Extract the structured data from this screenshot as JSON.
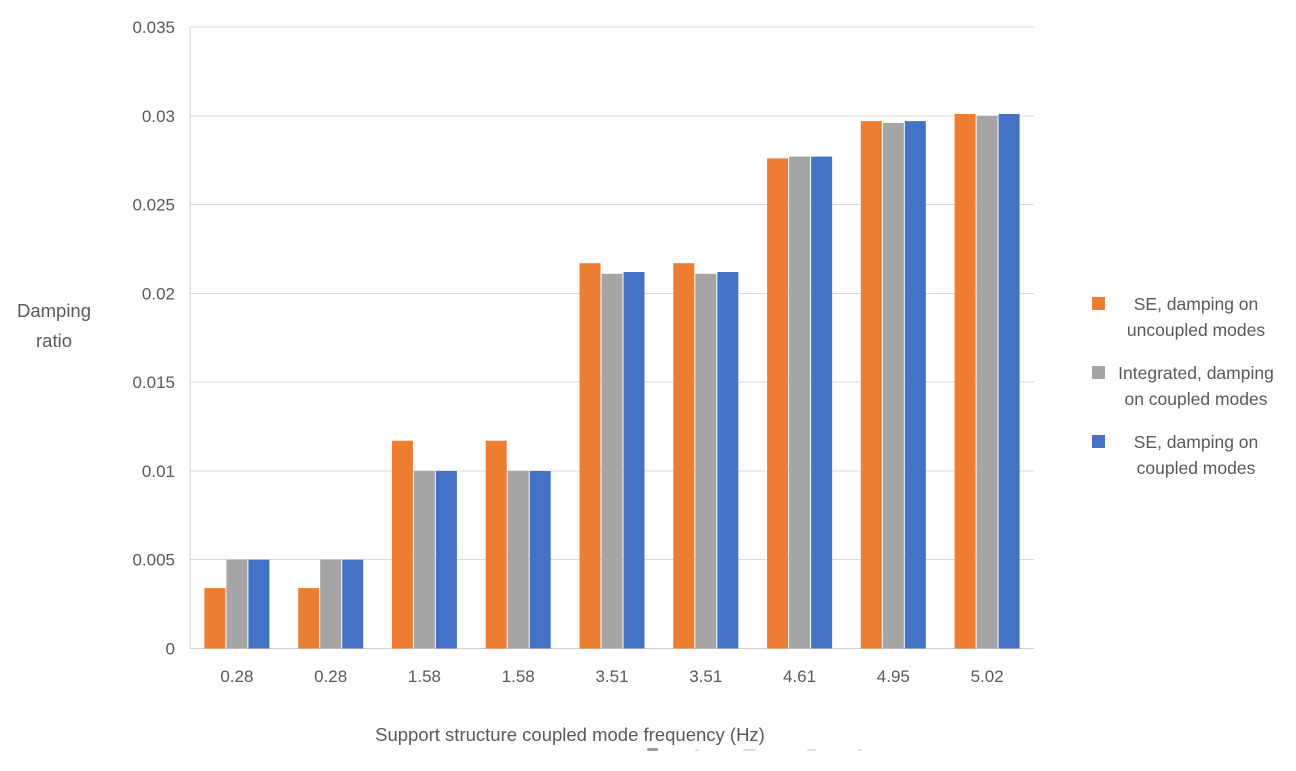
{
  "chart_data": {
    "type": "bar",
    "title": "",
    "xlabel": "Support structure coupled mode frequency (Hz)",
    "ylabel": "Damping ratio",
    "categories": [
      "0.28",
      "0.28",
      "1.58",
      "1.58",
      "3.51",
      "3.51",
      "4.61",
      "4.95",
      "5.02"
    ],
    "series": [
      {
        "name": "SE, damping on uncoupled modes",
        "color": "#ED7D31",
        "values": [
          0.0034,
          0.0034,
          0.0117,
          0.0117,
          0.0217,
          0.0217,
          0.0276,
          0.0297,
          0.0301
        ]
      },
      {
        "name": "Integrated, damping on coupled modes",
        "color": "#A5A5A5",
        "values": [
          0.005,
          0.005,
          0.01,
          0.01,
          0.0211,
          0.0211,
          0.0277,
          0.0296,
          0.03
        ]
      },
      {
        "name": "SE, damping on coupled modes",
        "color": "#4472C4",
        "values": [
          0.005,
          0.005,
          0.01,
          0.01,
          0.0212,
          0.0212,
          0.0277,
          0.0297,
          0.0301
        ]
      }
    ],
    "ylim": [
      0,
      0.035
    ],
    "ytick_step": 0.005,
    "ytick_labels": [
      "0",
      "0.005",
      "0.01",
      "0.015",
      "0.02",
      "0.025",
      "0.03",
      "0.035"
    ],
    "grid": true,
    "legend_position": "right"
  },
  "colors": {
    "text": "#595959",
    "gridline": "#D9D9D9",
    "axis": "#D2D2D2",
    "background": "#FFFFFF"
  }
}
